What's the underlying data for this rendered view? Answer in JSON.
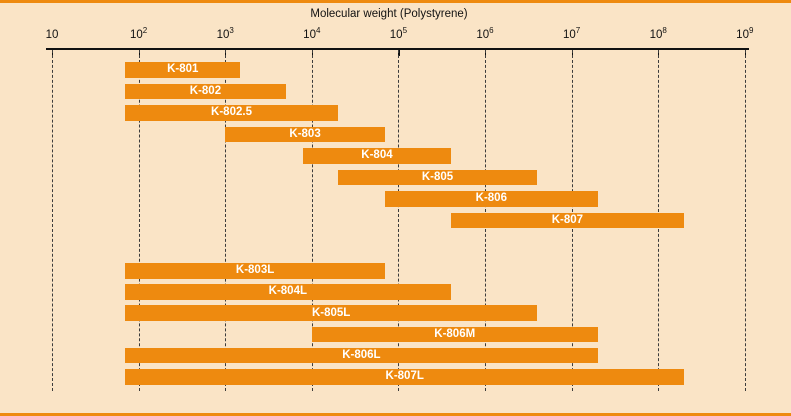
{
  "colors": {
    "background": "#FAE4C6",
    "bar": "#EE8A0F",
    "border_line": "#EE8A0F",
    "axis_text": "#111111",
    "grid_line": "#3c3c3c",
    "bar_label_text": "#ffffff"
  },
  "chart_data": {
    "type": "bar",
    "orientation": "horizontal-range",
    "title": "Molecular weight (Polystyrene)",
    "x_scale": "log10",
    "x_min": 10,
    "x_max": 1000000000,
    "grid": "vertical-dashed",
    "legend": "none",
    "x_ticks": [
      "10",
      "10²",
      "10³",
      "10⁴",
      "10⁵",
      "10⁶",
      "10⁷",
      "10⁸",
      "10⁹"
    ],
    "x_tick_exponents": [
      1,
      2,
      3,
      4,
      5,
      6,
      7,
      8,
      9
    ],
    "series": [
      {
        "name": "K-801",
        "group": "standard",
        "row": 0,
        "mw_min": 70,
        "mw_max": 1500
      },
      {
        "name": "K-802",
        "group": "standard",
        "row": 1,
        "mw_min": 70,
        "mw_max": 5000
      },
      {
        "name": "K-802.5",
        "group": "standard",
        "row": 2,
        "mw_min": 70,
        "mw_max": 20000
      },
      {
        "name": "K-803",
        "group": "standard",
        "row": 3,
        "mw_min": 1000,
        "mw_max": 70000
      },
      {
        "name": "K-804",
        "group": "standard",
        "row": 4,
        "mw_min": 8000,
        "mw_max": 400000
      },
      {
        "name": "K-805",
        "group": "standard",
        "row": 5,
        "mw_min": 20000,
        "mw_max": 4000000
      },
      {
        "name": "K-806",
        "group": "standard",
        "row": 6,
        "mw_min": 70000,
        "mw_max": 20000000
      },
      {
        "name": "K-807",
        "group": "standard",
        "row": 7,
        "mw_min": 400000,
        "mw_max": 200000000
      },
      {
        "name": "K-803L",
        "group": "linear",
        "row": 0,
        "mw_min": 70,
        "mw_max": 70000
      },
      {
        "name": "K-804L",
        "group": "linear",
        "row": 1,
        "mw_min": 70,
        "mw_max": 400000
      },
      {
        "name": "K-805L",
        "group": "linear",
        "row": 2,
        "mw_min": 70,
        "mw_max": 4000000
      },
      {
        "name": "K-806M",
        "group": "linear",
        "row": 3,
        "mw_min": 10000,
        "mw_max": 20000000
      },
      {
        "name": "K-806L",
        "group": "linear",
        "row": 4,
        "mw_min": 70,
        "mw_max": 20000000
      },
      {
        "name": "K-807L",
        "group": "linear",
        "row": 5,
        "mw_min": 70,
        "mw_max": 200000000
      }
    ]
  }
}
